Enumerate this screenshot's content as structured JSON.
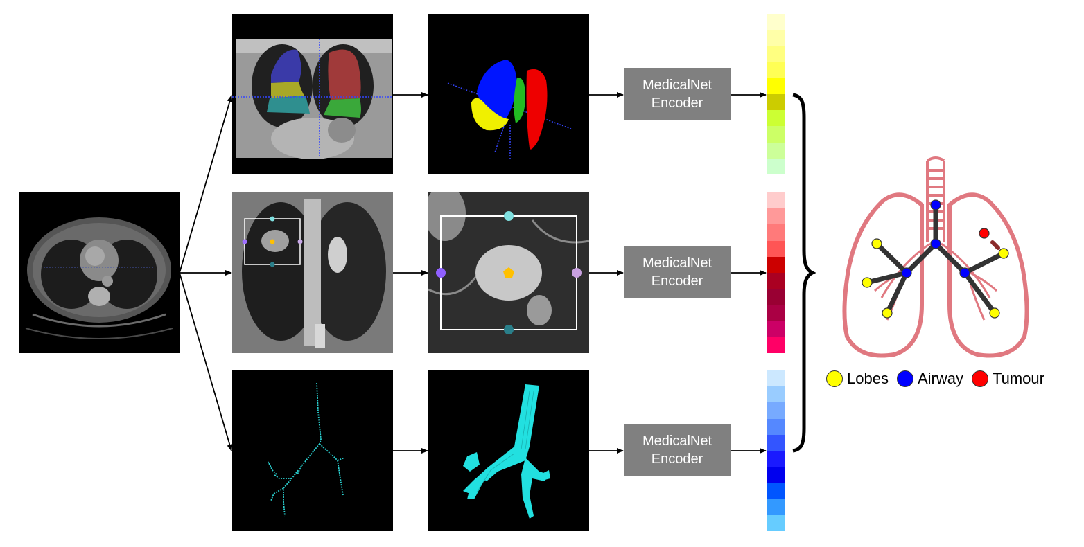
{
  "encoders": [
    {
      "line1": "MedicalNet",
      "line2": "Encoder"
    },
    {
      "line1": "MedicalNet",
      "line2": "Encoder"
    },
    {
      "line1": "MedicalNet",
      "line2": "Encoder"
    }
  ],
  "feature_vectors": [
    {
      "colors": [
        "#ffffcc",
        "#ffffa8",
        "#ffff80",
        "#ffff55",
        "#ffff00",
        "#cccc00",
        "#ccff33",
        "#ccff66",
        "#ccff99",
        "#ccffcc"
      ]
    },
    {
      "colors": [
        "#ffcccc",
        "#ff9999",
        "#ff7a7a",
        "#ff5555",
        "#cc0000",
        "#aa0022",
        "#990033",
        "#aa0044",
        "#cc0066",
        "#ff0066"
      ]
    },
    {
      "colors": [
        "#cce8ff",
        "#99ccff",
        "#77aaff",
        "#5588ff",
        "#3355ff",
        "#1a1aff",
        "#0000ee",
        "#0055ff",
        "#3399ff",
        "#66ccff"
      ]
    }
  ],
  "graph_colors": {
    "lobe": "#ffff00",
    "airway": "#0000ff",
    "tumour": "#ff0000",
    "lung_outline": "#e07880",
    "edge": "#333333"
  },
  "legend": [
    {
      "label": "Lobes",
      "color": "#ffff00"
    },
    {
      "label": "Airway",
      "color": "#0000ff"
    },
    {
      "label": "Tumour",
      "color": "#ff0000"
    }
  ],
  "icons": [
    "ct-axial-image",
    "lobe-segmentation-coronal",
    "lobe-3d-render",
    "tumour-bbox-coronal",
    "tumour-crop",
    "airway-centerline",
    "airway-3d-render",
    "lung-graph-icon",
    "brace-icon"
  ]
}
